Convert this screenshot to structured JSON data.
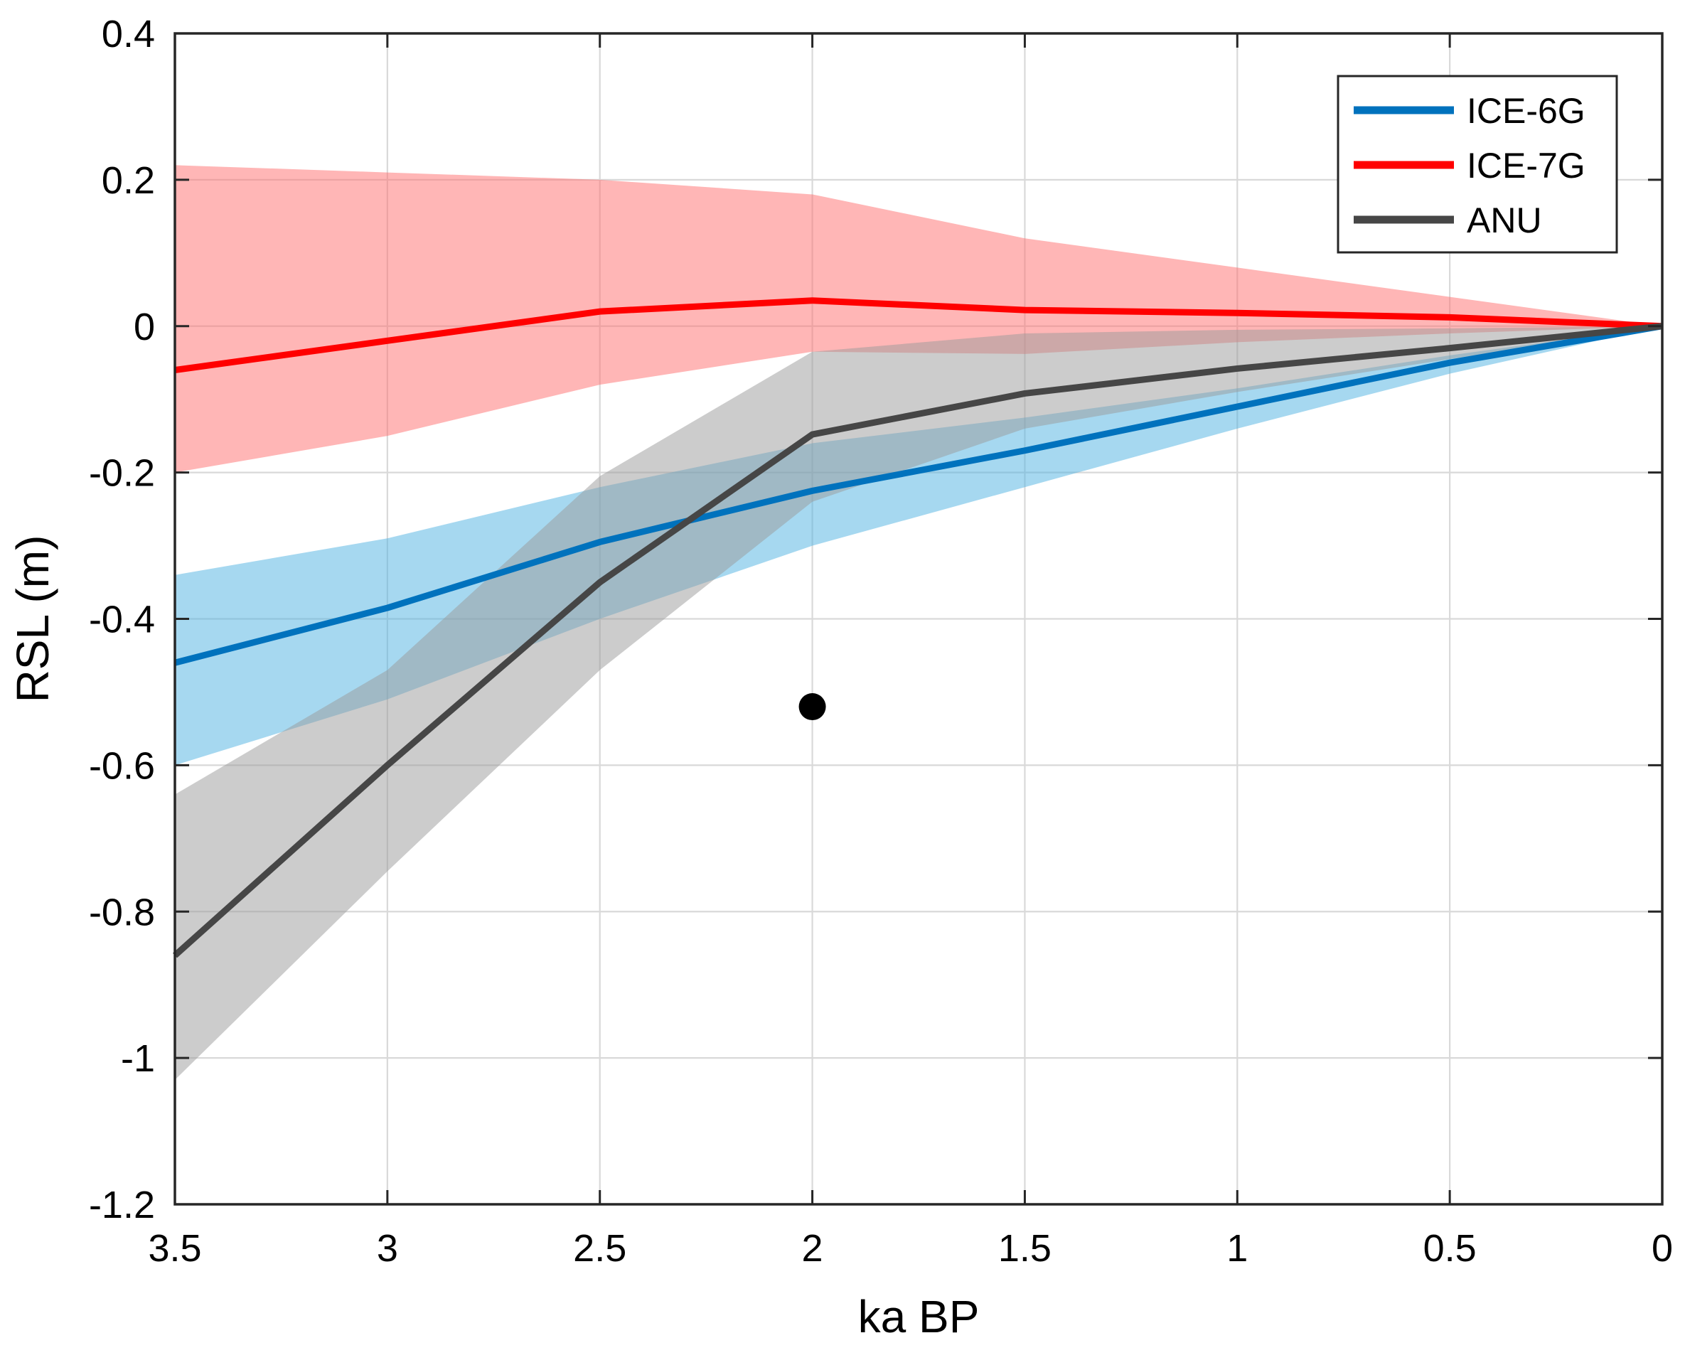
{
  "chart_data": {
    "type": "line",
    "title": "",
    "xlabel": "ka BP",
    "ylabel": "RSL (m)",
    "xlim": [
      3.5,
      0
    ],
    "ylim": [
      -1.2,
      0.4
    ],
    "x_reversed": true,
    "grid": true,
    "legend_position": "top-right",
    "x_ticks": [
      3.5,
      3,
      2.5,
      2,
      1.5,
      1,
      0.5,
      0
    ],
    "x_tick_labels": [
      "3.5",
      "3",
      "2.5",
      "2",
      "1.5",
      "1",
      "0.5",
      "0"
    ],
    "y_ticks": [
      0.4,
      0.2,
      0,
      -0.2,
      -0.4,
      -0.6,
      -0.8,
      -1,
      -1.2
    ],
    "y_tick_labels": [
      "0.4",
      "0.2",
      "0",
      "-0.2",
      "-0.4",
      "-0.6",
      "-0.8",
      "-1",
      "-1.2"
    ],
    "x": [
      3.5,
      3,
      2.5,
      2,
      1.5,
      1,
      0.5,
      0
    ],
    "series": [
      {
        "name": "ICE-6G",
        "color": "#0072BD",
        "band_color": "#4DB2E2",
        "values": [
          -0.46,
          -0.385,
          -0.295,
          -0.225,
          -0.17,
          -0.11,
          -0.05,
          0
        ],
        "lower": [
          -0.6,
          -0.51,
          -0.4,
          -0.3,
          -0.22,
          -0.14,
          -0.065,
          0
        ],
        "upper": [
          -0.34,
          -0.29,
          -0.22,
          -0.16,
          -0.125,
          -0.085,
          -0.04,
          0
        ]
      },
      {
        "name": "ICE-7G",
        "color": "#FF0000",
        "band_color": "#FF6E6E",
        "values": [
          -0.06,
          -0.02,
          0.02,
          0.035,
          0.022,
          0.018,
          0.012,
          0
        ],
        "lower": [
          -0.2,
          -0.15,
          -0.08,
          -0.035,
          -0.038,
          -0.022,
          -0.01,
          0
        ],
        "upper": [
          0.22,
          0.21,
          0.2,
          0.18,
          0.12,
          0.08,
          0.04,
          0
        ]
      },
      {
        "name": "ANU",
        "color": "#464646",
        "band_color": "#9A9A9A",
        "values": [
          -0.86,
          -0.6,
          -0.35,
          -0.148,
          -0.092,
          -0.058,
          -0.03,
          0
        ],
        "lower": [
          -1.03,
          -0.745,
          -0.47,
          -0.24,
          -0.14,
          -0.09,
          -0.045,
          0
        ],
        "upper": [
          -0.64,
          -0.47,
          -0.205,
          -0.035,
          -0.01,
          -0.005,
          -0.003,
          0
        ]
      }
    ],
    "observations": [
      {
        "x": 2,
        "y": -0.52,
        "color": "#000000"
      }
    ]
  }
}
